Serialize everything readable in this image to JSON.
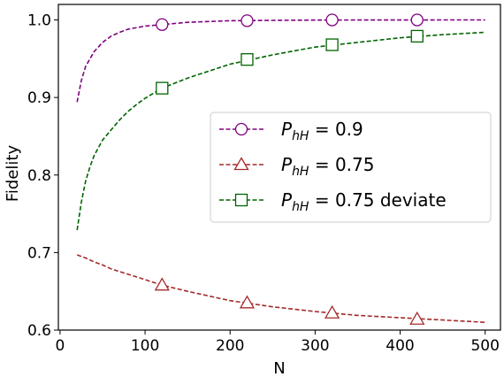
{
  "chart_data": {
    "type": "line",
    "xlabel": "N",
    "ylabel": "Fidelity",
    "xlim": [
      -2,
      518
    ],
    "ylim": [
      0.6,
      1.02
    ],
    "xticks": [
      0,
      100,
      200,
      300,
      400,
      500
    ],
    "yticks": [
      0.6,
      0.7,
      0.8,
      0.9,
      1.0
    ],
    "xtick_labels": [
      "0",
      "100",
      "200",
      "300",
      "400",
      "500"
    ],
    "ytick_labels": [
      "0.6",
      "0.7",
      "0.8",
      "0.9",
      "1.0"
    ],
    "grid": false,
    "legend_position": "center-right",
    "series": [
      {
        "id": "p09",
        "legend_prefix": "P",
        "legend_sub": "hH",
        "legend_suffix": " = 0.9",
        "color": "#800080",
        "marker": "circle",
        "x": [
          20,
          25,
          30,
          40,
          50,
          60,
          70,
          80,
          100,
          120,
          150,
          200,
          250,
          300,
          350,
          400,
          450,
          500
        ],
        "y": [
          0.894,
          0.922,
          0.94,
          0.959,
          0.971,
          0.979,
          0.984,
          0.988,
          0.992,
          0.994,
          0.997,
          0.999,
          0.9995,
          0.9998,
          0.9999,
          0.9999,
          1.0,
          1.0
        ],
        "marker_x": [
          120,
          220,
          320,
          420
        ],
        "marker_y": [
          0.994,
          0.999,
          1.0,
          1.0
        ]
      },
      {
        "id": "p075",
        "legend_prefix": "P",
        "legend_sub": "hH",
        "legend_suffix": " = 0.75",
        "color": "#a52a2a",
        "marker": "triangle",
        "x": [
          20,
          30,
          40,
          50,
          60,
          80,
          100,
          120,
          150,
          200,
          250,
          300,
          350,
          400,
          450,
          500
        ],
        "y": [
          0.697,
          0.693,
          0.688,
          0.684,
          0.679,
          0.672,
          0.665,
          0.658,
          0.65,
          0.638,
          0.63,
          0.624,
          0.619,
          0.616,
          0.613,
          0.61
        ],
        "marker_x": [
          120,
          220,
          320,
          420
        ],
        "marker_y": [
          0.658,
          0.635,
          0.622,
          0.614
        ]
      },
      {
        "id": "p075dev",
        "legend_prefix": "P",
        "legend_sub": "hH",
        "legend_suffix": " = 0.75 deviate",
        "color": "#006400",
        "marker": "square",
        "x": [
          20,
          25,
          30,
          35,
          40,
          50,
          60,
          70,
          80,
          90,
          100,
          120,
          150,
          200,
          250,
          300,
          350,
          400,
          450,
          500
        ],
        "y": [
          0.729,
          0.765,
          0.792,
          0.81,
          0.825,
          0.845,
          0.858,
          0.871,
          0.882,
          0.891,
          0.899,
          0.912,
          0.925,
          0.943,
          0.955,
          0.965,
          0.971,
          0.977,
          0.981,
          0.984
        ],
        "marker_x": [
          120,
          220,
          320,
          420
        ],
        "marker_y": [
          0.912,
          0.949,
          0.968,
          0.979
        ]
      }
    ]
  }
}
